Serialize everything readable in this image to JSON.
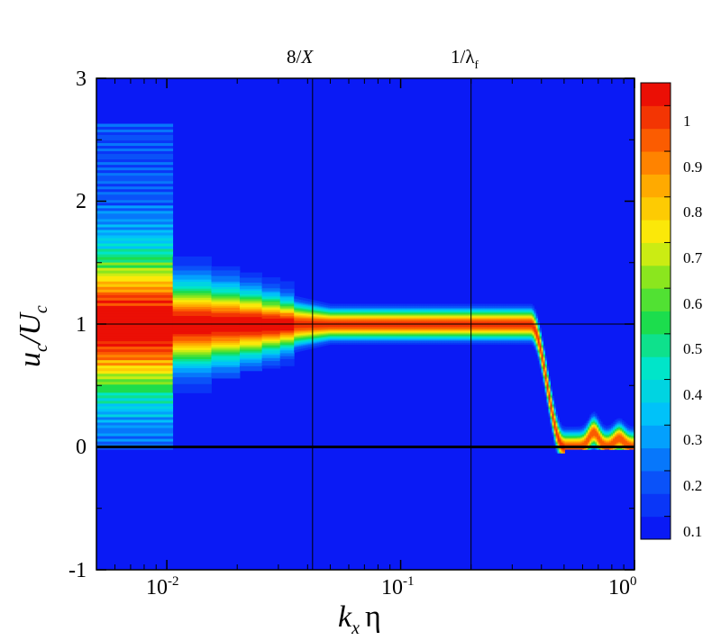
{
  "colors": {
    "background_level": "#0a1af5",
    "axis": "#000000"
  },
  "chart_data": {
    "type": "heatmap",
    "title": "",
    "x_axis": {
      "scale": "log",
      "range": [
        0.005,
        1.0
      ],
      "ticks": [
        0.01,
        0.1,
        1.0
      ],
      "tick_base": "10",
      "tick_exponents": [
        "-2",
        "-1",
        "0"
      ],
      "label_parts": [
        "k",
        "x",
        "η"
      ]
    },
    "y_axis": {
      "scale": "linear",
      "range": [
        -1,
        3
      ],
      "ticks": [
        -1,
        0,
        1,
        2,
        3
      ],
      "tick_labels": [
        "-1",
        "0",
        "1",
        "2",
        "3"
      ],
      "label_parts": [
        "u",
        "c",
        "/U",
        "c"
      ]
    },
    "reference_lines": [
      {
        "axis": "x",
        "value": 0.042,
        "label": "8/X",
        "label_parts": [
          "8/",
          "X"
        ]
      },
      {
        "axis": "x",
        "value": 0.2,
        "label": "1/λf",
        "label_parts": [
          "1/λ",
          "f"
        ]
      },
      {
        "axis": "y",
        "value": 1,
        "label": ""
      },
      {
        "axis": "y",
        "value": 0,
        "label": "",
        "style": "bold"
      }
    ],
    "colorbar": {
      "range": [
        0.05,
        1.05
      ],
      "levels": 20,
      "labeled_ticks": [
        0.1,
        0.2,
        0.3,
        0.4,
        0.5,
        0.6,
        0.7,
        0.8,
        0.9,
        1.0
      ],
      "tick_labels": [
        "0.1",
        "0.2",
        "0.3",
        "0.4",
        "0.5",
        "0.6",
        "0.7",
        "0.8",
        "0.9",
        "1"
      ],
      "colormap": "blue-cyan-green-yellow-orange-red"
    },
    "ridge": {
      "x_start": 0.005,
      "x_end": 1.0,
      "plateau_y": 1.0,
      "plateau_end_x": 0.36,
      "drop_end_x": 0.5,
      "bumps": [
        {
          "x": 0.67,
          "height": 0.12
        },
        {
          "x": 0.86,
          "height": 0.07
        }
      ],
      "low_resolution_until_x": 0.0106,
      "secondary_bins_until_x": 0.035
    }
  }
}
